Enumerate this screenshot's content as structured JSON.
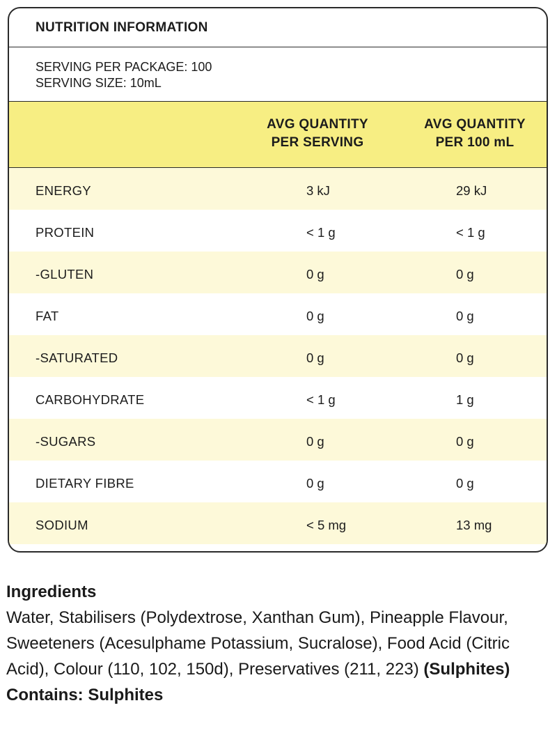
{
  "panel": {
    "title": "NUTRITION INFORMATION",
    "serving_per_package": "SERVING PER PACKAGE: 100",
    "serving_size": "SERVING SIZE: 10mL",
    "col1_line1": "AVG QUANTITY",
    "col1_line2": "PER SERVING",
    "col2_line1": "AVG QUANTITY",
    "col2_line2": "PER 100 mL",
    "rows": [
      {
        "name": "ENERGY",
        "per_serving": "3 kJ",
        "per_100ml": "29 kJ"
      },
      {
        "name": "PROTEIN",
        "per_serving": "< 1 g",
        "per_100ml": "< 1 g"
      },
      {
        "name": "-GLUTEN",
        "per_serving": "0 g",
        "per_100ml": "0 g"
      },
      {
        "name": "FAT",
        "per_serving": "0 g",
        "per_100ml": "0 g"
      },
      {
        "name": "-SATURATED",
        "per_serving": "0 g",
        "per_100ml": "0 g"
      },
      {
        "name": "CARBOHYDRATE",
        "per_serving": "< 1 g",
        "per_100ml": "1 g"
      },
      {
        "name": "-SUGARS",
        "per_serving": "0 g",
        "per_100ml": "0 g"
      },
      {
        "name": "DIETARY FIBRE",
        "per_serving": "0 g",
        "per_100ml": "0 g"
      },
      {
        "name": "SODIUM",
        "per_serving": "< 5 mg",
        "per_100ml": "13 mg"
      }
    ]
  },
  "ingredients": {
    "title": "Ingredients",
    "text": "Water, Stabilisers (Polydextrose, Xanthan Gum), Pineapple Flavour, Sweeteners (Acesulphame Potassium, Sucralose), Food Acid (Citric Acid), Colour (110, 102, 150d), Preservatives (211, 223) ",
    "allergen_inline": "(Sulphites)",
    "contains": "Contains: Sulphites"
  }
}
